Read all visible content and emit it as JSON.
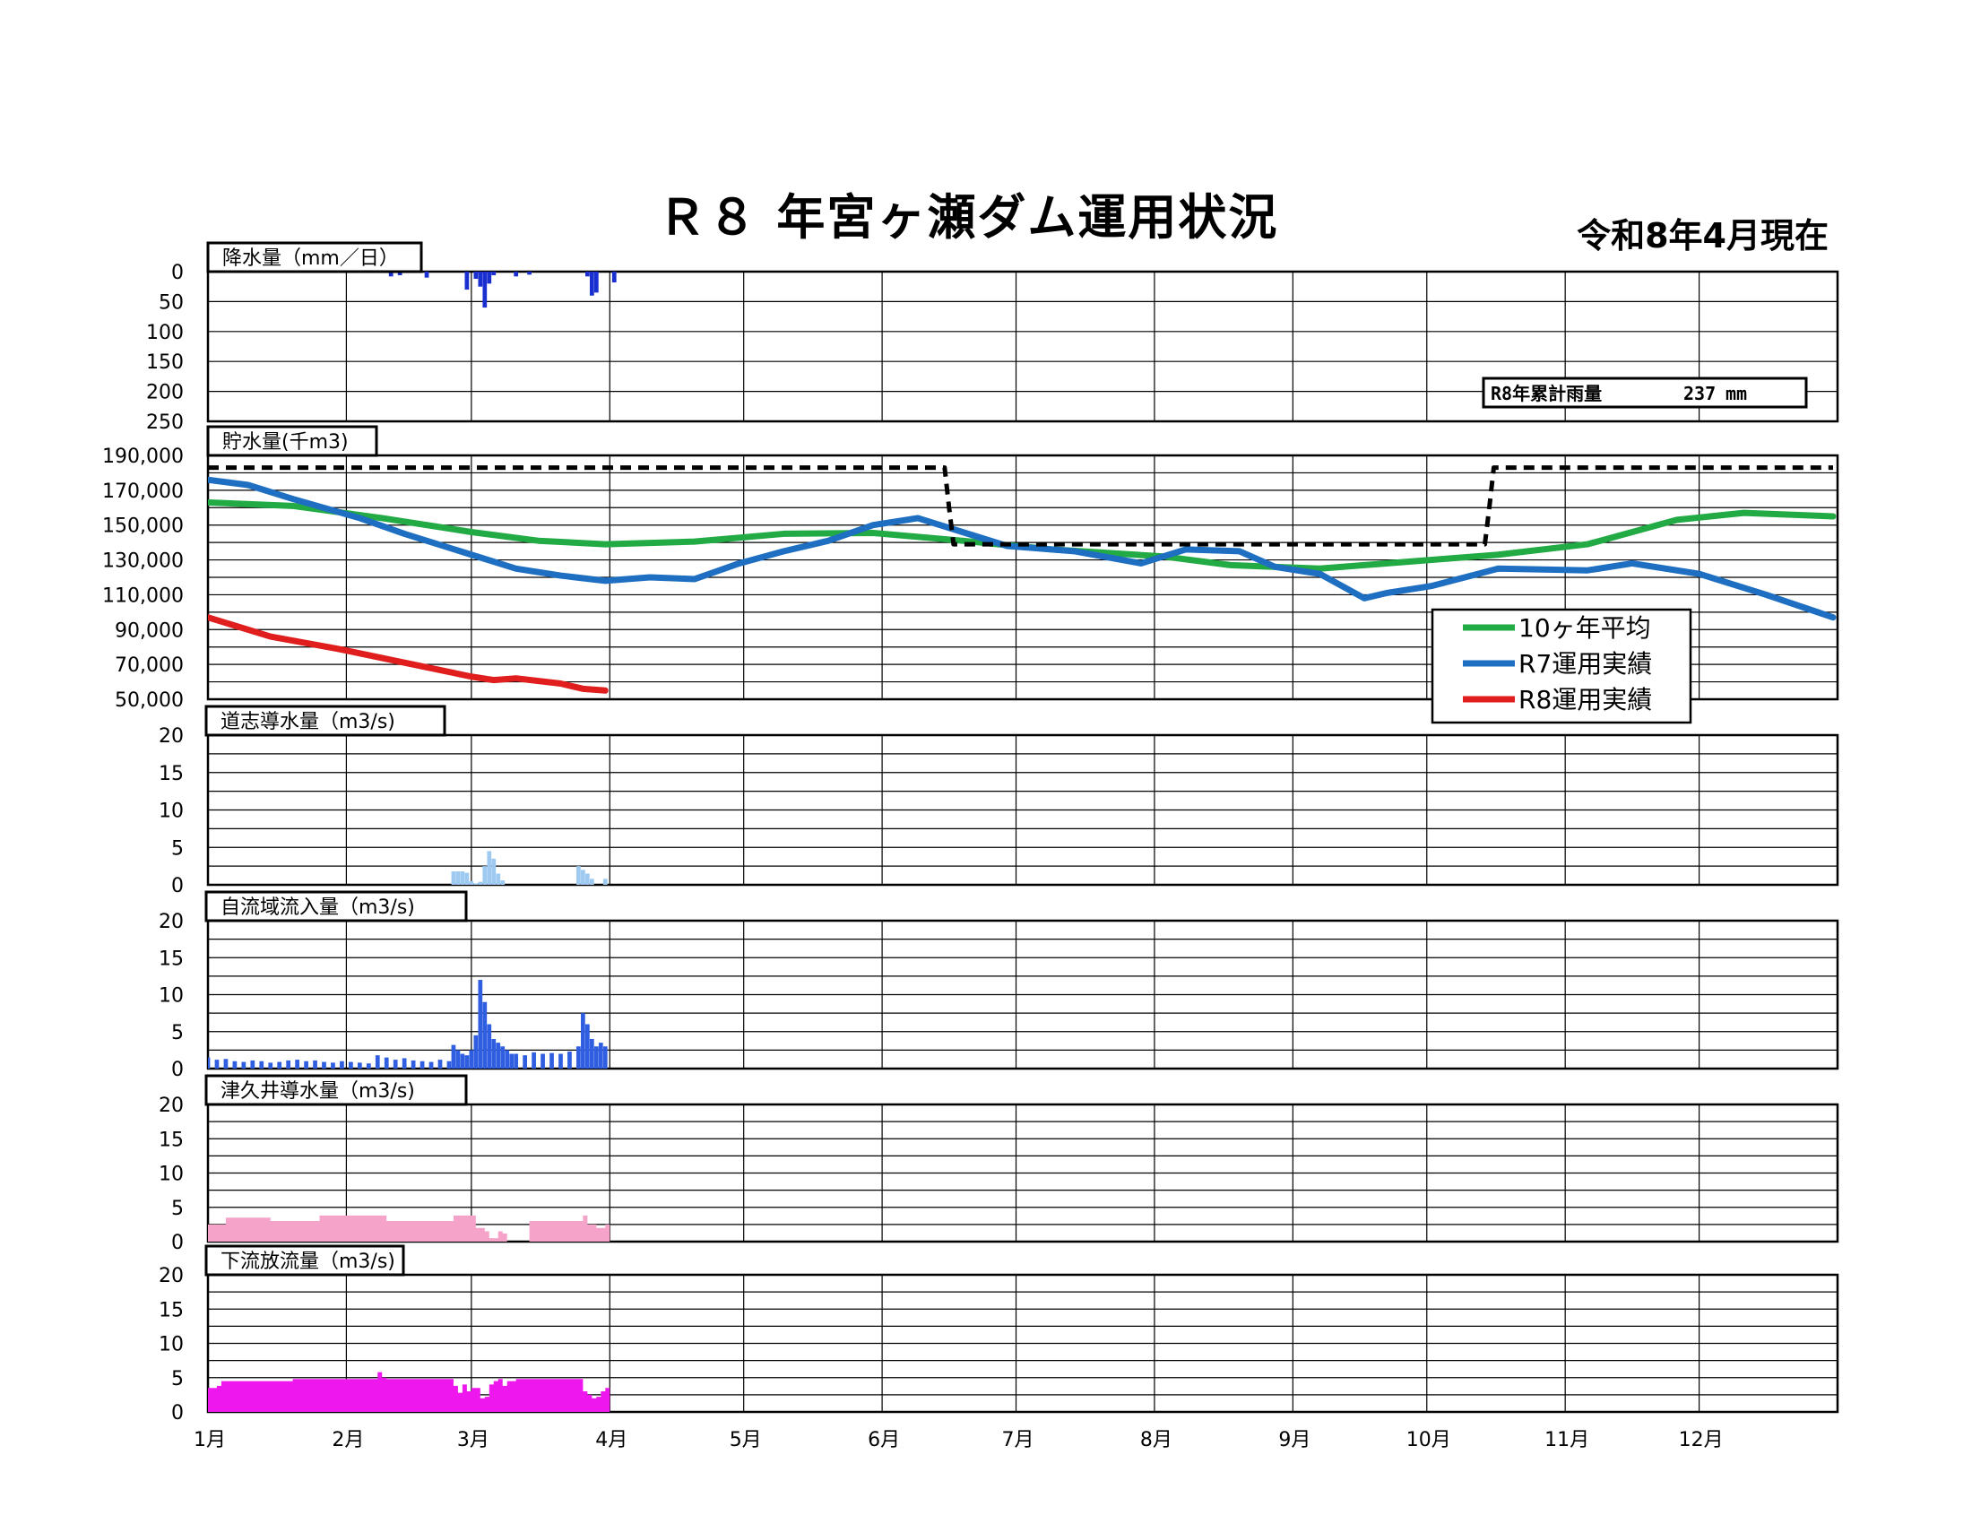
{
  "header": {
    "title": "Ｒ８ 年宮ヶ瀬ダム運用状況",
    "date": "令和8年4月現在"
  },
  "colors": {
    "avg": "#22aa44",
    "r7": "#1e6fc2",
    "r8": "#e01e1e",
    "plan": "#000000",
    "rain": "#1a2fd0",
    "doshi": "#9ec9f0",
    "inflow": "#2f5ee0",
    "tsukui": "#f5a3c8",
    "outflow": "#ee18ee"
  },
  "months": [
    "1月",
    "2月",
    "3月",
    "4月",
    "5月",
    "6月",
    "7月",
    "8月",
    "9月",
    "10月",
    "11月",
    "12月"
  ],
  "cumulative_rain": {
    "label": "R8年累計雨量",
    "value": "237",
    "unit": "mm"
  },
  "legend": [
    {
      "key": "avg",
      "label": "10ヶ年平均"
    },
    {
      "key": "r7",
      "label": "R7運用実績"
    },
    {
      "key": "r8",
      "label": "R8運用実績"
    }
  ],
  "chart_data": [
    {
      "id": "rain",
      "type": "bar",
      "title": "降水量（mm／日）",
      "ylim": [
        0,
        250
      ],
      "inverted": true,
      "yticks": [
        "0",
        "50",
        "100",
        "150",
        "200",
        "250"
      ],
      "x_unit": "day of year",
      "x": [
        42,
        44,
        50,
        59,
        61,
        62,
        63,
        64,
        65,
        70,
        73,
        86,
        87,
        88,
        92
      ],
      "values": [
        8,
        6,
        10,
        30,
        12,
        25,
        60,
        20,
        6,
        8,
        5,
        8,
        40,
        35,
        18
      ]
    },
    {
      "id": "storage",
      "type": "line",
      "title": "貯水量(千m3)",
      "ylim": [
        50000,
        190000
      ],
      "yticks": [
        "190,000",
        "170,000",
        "150,000",
        "130,000",
        "110,000",
        "90,000",
        "70,000",
        "50,000"
      ],
      "x_unit": "day of year",
      "series": [
        {
          "name": "10ヶ年平均",
          "key": "avg",
          "x": [
            1,
            20,
            40,
            60,
            75,
            90,
            110,
            130,
            150,
            170,
            190,
            215,
            230,
            250,
            270,
            290,
            310,
            330,
            345,
            365
          ],
          "values": [
            163000,
            161000,
            154000,
            146000,
            141000,
            139000,
            140500,
            145000,
            145500,
            141000,
            136000,
            132000,
            127000,
            125000,
            129000,
            133000,
            139000,
            153000,
            157000,
            155000
          ]
        },
        {
          "name": "R7運用実績",
          "key": "r7",
          "x": [
            1,
            10,
            20,
            35,
            45,
            60,
            70,
            80,
            90,
            100,
            110,
            120,
            130,
            140,
            150,
            160,
            170,
            180,
            195,
            210,
            220,
            232,
            240,
            250,
            260,
            265,
            275,
            290,
            310,
            320,
            335,
            350,
            365
          ],
          "values": [
            176000,
            173000,
            165000,
            154000,
            145000,
            133000,
            125000,
            121000,
            118000,
            120000,
            119000,
            128000,
            135000,
            141000,
            150000,
            154000,
            146000,
            138000,
            135000,
            128000,
            136000,
            135000,
            126000,
            122000,
            108000,
            111000,
            115000,
            125000,
            124000,
            128000,
            122000,
            110000,
            97000
          ]
        },
        {
          "name": "R8運用実績",
          "key": "r8",
          "x": [
            1,
            15,
            30,
            45,
            60,
            65,
            70,
            80,
            85,
            90
          ],
          "values": [
            97000,
            86000,
            79000,
            71000,
            63000,
            61000,
            62000,
            59000,
            56000,
            55000
          ]
        },
        {
          "name": "",
          "key": "plan",
          "dashed": true,
          "x": [
            1,
            166,
            167,
            168,
            287,
            288,
            289,
            365
          ],
          "values": [
            183000,
            183000,
            160000,
            139000,
            139000,
            160000,
            183000,
            183000
          ]
        }
      ]
    },
    {
      "id": "doshi",
      "type": "bar",
      "title": "道志導水量（m3/s)",
      "ylim": [
        0,
        20
      ],
      "yticks": [
        "20",
        "15",
        "10",
        "5",
        "0"
      ],
      "x_unit": "day of year",
      "x": [
        56,
        57,
        58,
        59,
        60,
        61,
        62,
        63,
        64,
        65,
        66,
        67,
        84,
        85,
        86,
        87,
        90
      ],
      "values": [
        1.8,
        1.8,
        1.8,
        1.6,
        0.5,
        0.2,
        0.4,
        2.5,
        4.5,
        3.5,
        1.5,
        0.6,
        2.5,
        2.0,
        1.5,
        0.8,
        0.8
      ]
    },
    {
      "id": "inflow",
      "type": "bar",
      "title": "自流域流入量（m3/s)",
      "ylim": [
        0,
        20
      ],
      "yticks": [
        "20",
        "15",
        "10",
        "5",
        "0"
      ],
      "x_unit": "day of year",
      "x": [
        1,
        3,
        5,
        7,
        9,
        11,
        13,
        15,
        17,
        19,
        21,
        23,
        25,
        27,
        29,
        31,
        33,
        35,
        37,
        39,
        41,
        43,
        45,
        47,
        49,
        51,
        53,
        55,
        56,
        57,
        58,
        59,
        60,
        61,
        62,
        63,
        64,
        65,
        66,
        67,
        68,
        69,
        70,
        72,
        74,
        76,
        78,
        80,
        82,
        84,
        85,
        86,
        87,
        88,
        89,
        90
      ],
      "values": [
        1.5,
        1.2,
        1.3,
        1.0,
        0.9,
        1.1,
        1.0,
        0.8,
        0.9,
        1.1,
        1.2,
        1.0,
        1.1,
        0.9,
        0.8,
        1.0,
        0.9,
        0.8,
        0.7,
        1.8,
        1.5,
        1.2,
        1.4,
        1.1,
        1.0,
        0.9,
        1.2,
        1.0,
        3.2,
        2.5,
        2.0,
        1.8,
        2.5,
        4.5,
        12.0,
        9.0,
        6.0,
        4.0,
        3.5,
        3.0,
        2.5,
        2.0,
        2.0,
        1.8,
        2.2,
        2.0,
        2.1,
        2.0,
        2.3,
        3.0,
        7.5,
        6.0,
        4.0,
        3.0,
        3.5,
        3.0
      ]
    },
    {
      "id": "tsukui",
      "type": "area",
      "title": "津久井導水量（m3/s)",
      "ylim": [
        0,
        20
      ],
      "yticks": [
        "20",
        "15",
        "10",
        "5",
        "0"
      ],
      "x_unit": "day of year",
      "x": [
        1,
        5,
        15,
        25,
        26,
        40,
        41,
        55,
        56,
        60,
        61,
        63,
        64,
        66,
        67,
        68,
        69,
        72,
        73,
        80,
        84,
        85,
        86,
        88,
        90
      ],
      "values": [
        2.5,
        3.5,
        3.0,
        3.0,
        3.8,
        3.8,
        3.0,
        3.0,
        3.8,
        3.8,
        2.0,
        1.5,
        0.5,
        1.5,
        1.2,
        0,
        0,
        0,
        3.0,
        3.0,
        3.0,
        3.8,
        2.5,
        2.0,
        2.5
      ]
    },
    {
      "id": "outflow",
      "type": "area",
      "title": "下流放流量（m3/s)",
      "ylim": [
        0,
        20
      ],
      "yticks": [
        "20",
        "15",
        "10",
        "5",
        "0"
      ],
      "x_unit": "day of year",
      "x": [
        1,
        3,
        4,
        20,
        38,
        39,
        40,
        41,
        55,
        56,
        57,
        58,
        59,
        60,
        61,
        62,
        63,
        64,
        65,
        66,
        67,
        68,
        70,
        80,
        84,
        85,
        86,
        87,
        88,
        89,
        90
      ],
      "values": [
        3.5,
        3.8,
        4.5,
        4.8,
        4.8,
        5.8,
        5.0,
        4.8,
        4.8,
        3.8,
        2.8,
        4.0,
        3.0,
        3.5,
        3.5,
        2.0,
        2.2,
        4.0,
        4.5,
        4.8,
        3.8,
        4.5,
        4.8,
        4.8,
        4.8,
        3.0,
        2.5,
        2.0,
        2.2,
        3.0,
        3.5
      ]
    }
  ]
}
